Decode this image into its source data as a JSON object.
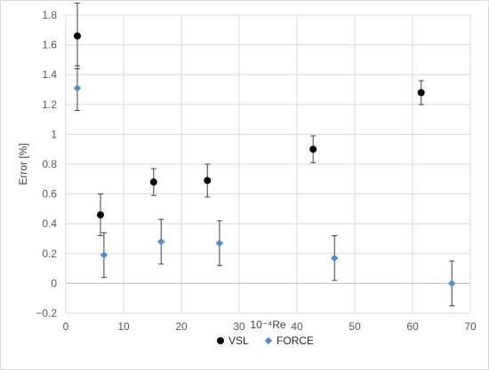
{
  "chart_data": {
    "type": "scatter",
    "xlabel": "10⁻⁴Re",
    "ylabel": "Error [%]",
    "xlim": [
      0,
      70
    ],
    "ylim": [
      -0.2,
      1.8
    ],
    "x_ticks": [
      0,
      10,
      20,
      30,
      40,
      50,
      60,
      70
    ],
    "y_ticks": [
      -0.2,
      0,
      0.2,
      0.4,
      0.6,
      0.8,
      1,
      1.2,
      1.4,
      1.6,
      1.8
    ],
    "x_tick_labels": [
      "0",
      "10",
      "20",
      "30",
      "40",
      "50",
      "60",
      "70"
    ],
    "y_tick_labels": [
      "−0.2",
      "0",
      "0.2",
      "0.4",
      "0.6",
      "0.8",
      "1",
      "1.2",
      "1.4",
      "1.6",
      "1.8"
    ],
    "grid": true,
    "legend_position": "bottom",
    "error_bars": true,
    "series": [
      {
        "name": "VSL",
        "marker": "circle",
        "color": "#000000",
        "points": [
          {
            "x": 2.0,
            "y": 1.66,
            "err": 0.22
          },
          {
            "x": 6.0,
            "y": 0.46,
            "err": 0.14
          },
          {
            "x": 15.2,
            "y": 0.68,
            "err": 0.09
          },
          {
            "x": 24.5,
            "y": 0.69,
            "err": 0.11
          },
          {
            "x": 42.8,
            "y": 0.9,
            "err": 0.09
          },
          {
            "x": 61.5,
            "y": 1.28,
            "err": 0.08
          }
        ]
      },
      {
        "name": "FORCE",
        "marker": "diamond",
        "color": "#4a90d0",
        "points": [
          {
            "x": 2.0,
            "y": 1.31,
            "err": 0.15
          },
          {
            "x": 6.6,
            "y": 0.19,
            "err": 0.15
          },
          {
            "x": 16.5,
            "y": 0.28,
            "err": 0.15
          },
          {
            "x": 26.6,
            "y": 0.27,
            "err": 0.15
          },
          {
            "x": 46.5,
            "y": 0.17,
            "err": 0.15
          },
          {
            "x": 66.8,
            "y": 0.0,
            "err": 0.15
          }
        ]
      }
    ]
  },
  "colors": {
    "gridline": "#d9d9d9",
    "error_bar": "#404040",
    "axis_line": "#bfbfbf"
  }
}
